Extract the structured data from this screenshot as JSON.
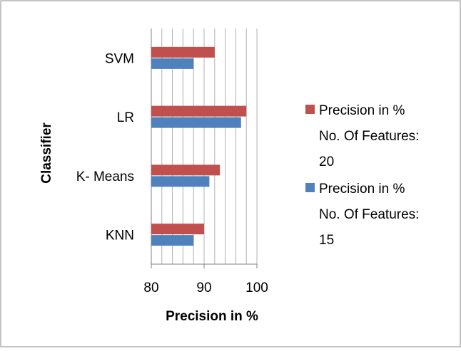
{
  "chart_data": {
    "type": "bar",
    "orientation": "horizontal",
    "categories": [
      "KNN",
      "K- Means",
      "LR",
      "SVM"
    ],
    "series": [
      {
        "name": "Precision in % No. Of Features: 20",
        "legend_lines": [
          "Precision in %",
          "No. Of Features:",
          "20"
        ],
        "color": "#c0504d",
        "values": [
          90,
          93,
          98,
          92
        ]
      },
      {
        "name": "Precision in % No. Of Features: 15",
        "legend_lines": [
          "Precision in %",
          "No. Of Features:",
          "15"
        ],
        "color": "#4f81bd",
        "values": [
          88,
          91,
          97,
          88
        ]
      }
    ],
    "xlabel": "Precision in %",
    "ylabel": "Classifier",
    "xlim": [
      80,
      100
    ],
    "xticks": [
      "80",
      "90",
      "100"
    ],
    "x_minor_step": 2,
    "grid": true,
    "legend_position": "right"
  }
}
